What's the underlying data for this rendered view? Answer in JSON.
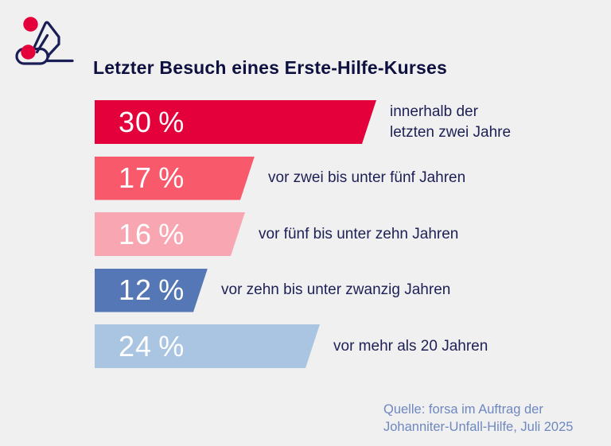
{
  "header": {
    "title": "Letzter Besuch eines Erste-Hilfe-Kurses"
  },
  "logo": {
    "semantic": "cpr-first-aid-pictogram",
    "outline_color": "#1B1E55",
    "dot_color": "#E4003B"
  },
  "colors": {
    "background": "#F0F0F0",
    "title_text": "#0E1040",
    "category_text": "#1D2055",
    "bar_value_text": "#FFFFFF",
    "source_text": "#6E88BF"
  },
  "chart_data": {
    "type": "bar",
    "orientation": "horizontal",
    "title": "Letzter Besuch eines Erste-Hilfe-Kurses",
    "unit": "%",
    "grid": false,
    "legend": false,
    "axes_visible": false,
    "value_label_position": "inside-bar-left",
    "category_label_position": "right-of-bar",
    "bars": [
      {
        "value": 30,
        "value_label": "30 %",
        "category": "innerhalb der\nletzten zwei Jahre",
        "color": "#E4003B"
      },
      {
        "value": 17,
        "value_label": "17 %",
        "category": "vor zwei bis unter fünf Jahren",
        "color": "#F8596B"
      },
      {
        "value": 16,
        "value_label": "16 %",
        "category": "vor fünf bis unter zehn Jahren",
        "color": "#F8A7B2"
      },
      {
        "value": 12,
        "value_label": "12 %",
        "category": "vor zehn bis unter zwanzig Jahren",
        "color": "#5677B5"
      },
      {
        "value": 24,
        "value_label": "24 %",
        "category": "vor mehr als 20 Jahren",
        "color": "#AAC5E2"
      }
    ],
    "source": "Quelle: forsa im Auftrag der\nJohanniter-Unfall-Hilfe, Juli 2025"
  }
}
